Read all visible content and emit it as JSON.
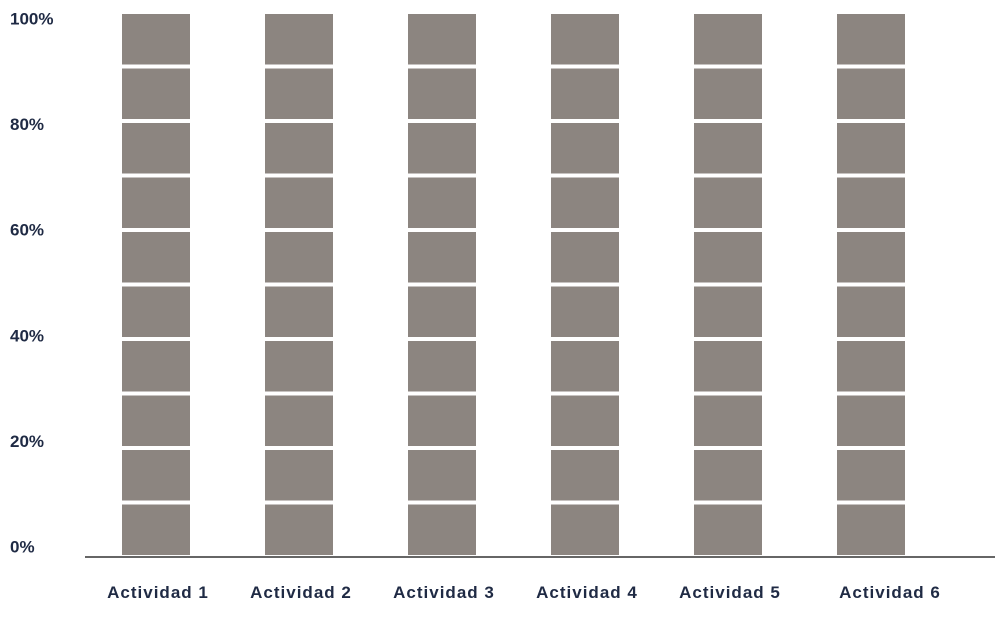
{
  "chart_data": {
    "type": "bar",
    "stacked": true,
    "color": "#8c8580",
    "categories": [
      "Actividad 1",
      "Actividad 2",
      "Actividad 3",
      "Actividad 4",
      "Actividad 5",
      "Actividad 6"
    ],
    "series": [
      {
        "values": [
          10,
          10,
          10,
          10,
          10,
          10
        ]
      },
      {
        "values": [
          10,
          10,
          10,
          10,
          10,
          10
        ]
      },
      {
        "values": [
          10,
          10,
          10,
          10,
          10,
          10
        ]
      },
      {
        "values": [
          10,
          10,
          10,
          10,
          10,
          10
        ]
      },
      {
        "values": [
          10,
          10,
          10,
          10,
          10,
          10
        ]
      },
      {
        "values": [
          10,
          10,
          10,
          10,
          10,
          10
        ]
      },
      {
        "values": [
          10,
          10,
          10,
          10,
          10,
          10
        ]
      },
      {
        "values": [
          10,
          10,
          10,
          10,
          10,
          10
        ]
      },
      {
        "values": [
          10,
          10,
          10,
          10,
          10,
          10
        ]
      },
      {
        "values": [
          10,
          10,
          10,
          10,
          10,
          10
        ]
      }
    ],
    "ylim": [
      0,
      100
    ],
    "yticks": [
      {
        "value": 0,
        "label": "0%"
      },
      {
        "value": 20,
        "label": "20%"
      },
      {
        "value": 40,
        "label": "40%"
      },
      {
        "value": 60,
        "label": "60%"
      },
      {
        "value": 80,
        "label": "80%"
      },
      {
        "value": 100,
        "label": "100%"
      }
    ],
    "grid": false
  }
}
